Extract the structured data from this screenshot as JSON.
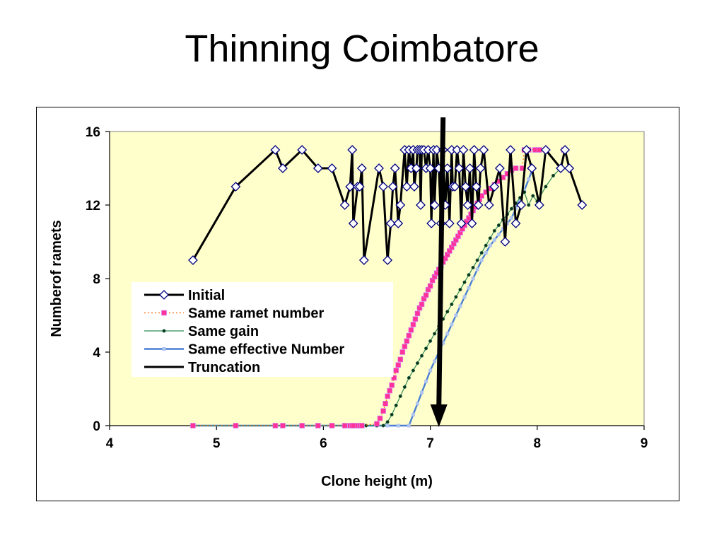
{
  "slide": {
    "title": "Thinning Coimbatore"
  },
  "colors": {
    "plot_bg": "#ffffcc",
    "initial": "#000000",
    "same_ramet": "#ff3399",
    "same_gain": "#2e8b57",
    "same_effective": "#4a7fd4",
    "truncation": "#000000"
  },
  "chart_data": {
    "type": "line",
    "xlabel": "Clone height (m)",
    "ylabel": "Numberof ramets",
    "xlim": [
      4,
      9
    ],
    "ylim": [
      0,
      16
    ],
    "xticks": [
      "4",
      "5",
      "6",
      "7",
      "8",
      "9"
    ],
    "yticks": [
      "0",
      "4",
      "8",
      "12",
      "16"
    ],
    "grid": false,
    "legend_position": "left-middle",
    "truncation_x": 7.08,
    "series": [
      {
        "name": "Initial",
        "style": "line-diamond",
        "x": [
          4.78,
          5.18,
          5.55,
          5.62,
          5.8,
          5.95,
          6.08,
          6.2,
          6.25,
          6.27,
          6.28,
          6.32,
          6.34,
          6.36,
          6.38,
          6.52,
          6.56,
          6.6,
          6.63,
          6.65,
          6.67,
          6.7,
          6.72,
          6.76,
          6.78,
          6.8,
          6.82,
          6.84,
          6.85,
          6.87,
          6.88,
          6.9,
          6.91,
          6.92,
          6.94,
          6.96,
          6.98,
          7.0,
          7.01,
          7.03,
          7.04,
          7.06,
          7.08,
          7.1,
          7.12,
          7.14,
          7.16,
          7.18,
          7.2,
          7.21,
          7.23,
          7.25,
          7.27,
          7.29,
          7.31,
          7.33,
          7.35,
          7.37,
          7.39,
          7.41,
          7.43,
          7.45,
          7.47,
          7.5,
          7.55,
          7.6,
          7.65,
          7.7,
          7.75,
          7.8,
          7.85,
          7.9,
          7.95,
          8.02,
          8.08,
          8.22,
          8.26,
          8.3,
          8.42
        ],
        "y": [
          9,
          13,
          15,
          14,
          15,
          14,
          14,
          12,
          13,
          15,
          11,
          13,
          13,
          14,
          9,
          14,
          13,
          9,
          11,
          13,
          14,
          11,
          12,
          15,
          13,
          15,
          14,
          15,
          13,
          14,
          15,
          15,
          12,
          15,
          15,
          14,
          15,
          14,
          11,
          15,
          12,
          15,
          14,
          11,
          15,
          12,
          14,
          11,
          15,
          13,
          13,
          15,
          14,
          11,
          15,
          13,
          12,
          14,
          11,
          15,
          13,
          12,
          14,
          15,
          12,
          13,
          14,
          10,
          15,
          11,
          12,
          15,
          14,
          12,
          15,
          14,
          15,
          14,
          12
        ]
      },
      {
        "name": "Same ramet number",
        "style": "dotted-square",
        "x": [
          4.78,
          5.18,
          5.55,
          5.62,
          5.8,
          5.95,
          6.08,
          6.2,
          6.25,
          6.27,
          6.28,
          6.32,
          6.34,
          6.36,
          6.5,
          6.53,
          6.56,
          6.58,
          6.6,
          6.62,
          6.64,
          6.66,
          6.68,
          6.7,
          6.72,
          6.74,
          6.76,
          6.78,
          6.8,
          6.82,
          6.84,
          6.86,
          6.88,
          6.9,
          6.92,
          6.94,
          6.96,
          6.98,
          7.0,
          7.02,
          7.04,
          7.06,
          7.08,
          7.1,
          7.12,
          7.14,
          7.16,
          7.18,
          7.2,
          7.22,
          7.24,
          7.26,
          7.28,
          7.3,
          7.32,
          7.34,
          7.36,
          7.38,
          7.4,
          7.42,
          7.44,
          7.46,
          7.48,
          7.52,
          7.56,
          7.6,
          7.64,
          7.68,
          7.72,
          7.76,
          7.8,
          7.86,
          7.88,
          7.92,
          7.98,
          8.02,
          8.08,
          8.22,
          8.25,
          8.42
        ],
        "y": [
          0,
          0,
          0,
          0,
          0,
          0,
          0,
          0,
          0,
          0,
          0,
          0,
          0,
          0,
          0.1,
          0.4,
          0.8,
          1.2,
          1.6,
          1.9,
          2.2,
          2.6,
          3.0,
          3.3,
          3.6,
          4.0,
          4.3,
          4.6,
          4.9,
          5.2,
          5.5,
          5.8,
          6.1,
          6.4,
          6.6,
          6.9,
          7.1,
          7.4,
          7.6,
          7.9,
          8.1,
          8.3,
          8.5,
          8.7,
          8.9,
          9.1,
          9.3,
          9.5,
          9.7,
          9.9,
          10.1,
          10.3,
          10.5,
          10.7,
          10.9,
          11.1,
          11.3,
          11.5,
          11.7,
          11.9,
          12.1,
          12.3,
          12.5,
          12.7,
          12.9,
          13.1,
          13.3,
          13.5,
          13.7,
          13.9,
          14.0,
          14.0,
          15.0,
          15.0,
          15.0,
          15.0,
          15.0,
          14.0,
          15.0,
          12.0
        ]
      },
      {
        "name": "Same gain",
        "style": "line-dot",
        "x": [
          4.78,
          5.18,
          5.55,
          5.62,
          5.8,
          5.95,
          6.08,
          6.2,
          6.25,
          6.3,
          6.36,
          6.4,
          6.5,
          6.56,
          6.6,
          6.64,
          6.68,
          6.72,
          6.76,
          6.8,
          6.84,
          6.88,
          6.92,
          6.96,
          7.0,
          7.04,
          7.08,
          7.12,
          7.16,
          7.2,
          7.24,
          7.28,
          7.32,
          7.36,
          7.4,
          7.44,
          7.48,
          7.52,
          7.56,
          7.6,
          7.64,
          7.68,
          7.72,
          7.76,
          7.8,
          7.84,
          7.88,
          7.92,
          7.96,
          8.0,
          8.08,
          8.15,
          8.22,
          8.3
        ],
        "y": [
          0,
          0,
          0,
          0,
          0,
          0,
          0,
          0,
          0,
          0,
          0,
          0,
          0,
          0,
          0.2,
          0.6,
          1.1,
          1.6,
          2.1,
          2.6,
          3.0,
          3.4,
          3.8,
          4.2,
          4.6,
          5.0,
          5.4,
          5.8,
          6.2,
          6.6,
          7.0,
          7.4,
          7.8,
          8.2,
          8.6,
          9.0,
          9.4,
          9.8,
          10.2,
          10.6,
          10.9,
          11.2,
          11.5,
          11.8,
          12.1,
          12.4,
          12.7,
          12.0,
          12.5,
          12.2,
          13.0,
          13.6,
          14.0,
          14.0
        ]
      },
      {
        "name": "Same effective Number",
        "style": "line-square",
        "x": [
          4.78,
          5.18,
          5.55,
          5.62,
          5.8,
          5.95,
          6.08,
          6.2,
          6.25,
          6.3,
          6.36,
          6.5,
          6.6,
          6.7,
          6.8,
          6.84,
          6.88,
          6.92,
          6.96,
          7.0,
          7.04,
          7.08,
          7.12,
          7.16,
          7.2,
          7.24,
          7.28,
          7.32,
          7.36,
          7.4,
          7.44,
          7.48,
          7.52,
          7.56,
          7.6,
          7.64,
          7.68,
          7.72,
          7.76,
          7.8,
          7.84,
          7.88,
          7.92,
          7.96
        ],
        "y": [
          0,
          0,
          0,
          0,
          0,
          0,
          0,
          0,
          0,
          0,
          0,
          0,
          0,
          0,
          0,
          0.6,
          1.2,
          1.8,
          2.4,
          3.0,
          3.5,
          4.0,
          4.5,
          5.0,
          5.5,
          6.0,
          6.5,
          7.0,
          7.5,
          8.0,
          8.5,
          9.0,
          9.4,
          9.8,
          10.1,
          10.4,
          10.7,
          11.0,
          11.3,
          11.8,
          12.3,
          12.8,
          13.4,
          14.0
        ]
      }
    ],
    "legend": [
      {
        "label": "Initial"
      },
      {
        "label": "Same ramet number"
      },
      {
        "label": "Same gain"
      },
      {
        "label": "Same effective Number"
      },
      {
        "label": "Truncation"
      }
    ]
  }
}
